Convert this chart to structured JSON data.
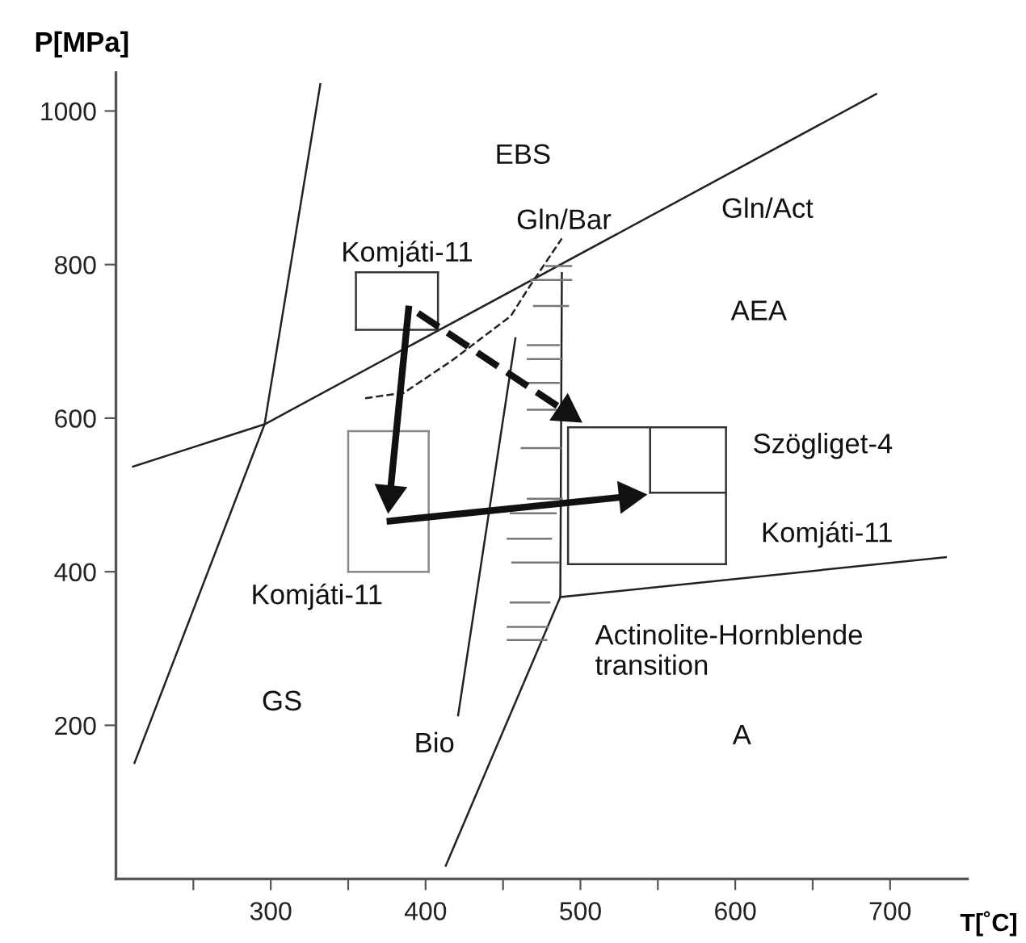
{
  "chart_data": {
    "type": "line",
    "xlabel": "T[˚C]",
    "ylabel": "P[MPa]",
    "xlim": [
      200,
      750
    ],
    "ylim": [
      0,
      1050
    ],
    "xticks": [
      {
        "value": 250,
        "label": null
      },
      300,
      {
        "value": 350,
        "label": null
      },
      400,
      {
        "value": 450,
        "label": null
      },
      500,
      {
        "value": 550,
        "label": null
      },
      600,
      {
        "value": 650,
        "label": null
      },
      700
    ],
    "yticks": [
      200,
      400,
      600,
      800,
      1000
    ],
    "grid": false,
    "legend": false,
    "marker": "none",
    "line_style": "solid",
    "series": [
      {
        "color": "#222222",
        "x": [
          212,
          296,
          332
        ],
        "values": [
          151,
          592,
          1035
        ]
      },
      {
        "color": "#222222",
        "x": [
          211,
          296,
          691
        ],
        "values": [
          537,
          592,
          1022
        ]
      },
      {
        "color": "#222222",
        "x": [
          421,
          458
        ],
        "values": [
          213,
          704
        ]
      },
      {
        "color": "#222222",
        "line_style": "dashed",
        "x": [
          361,
          386,
          417,
          455,
          467,
          488
        ],
        "values": [
          626,
          633,
          675,
          733,
          771,
          834
        ]
      },
      {
        "color": "#222222",
        "x": [
          488,
          487,
          413
        ],
        "values": [
          789,
          367,
          17
        ]
      },
      {
        "color": "#222222",
        "x": [
          487,
          736
        ],
        "values": [
          367,
          419
        ]
      },
      {
        "color": "#777777",
        "x": [
          478,
          494
        ],
        "values": [
          798,
          798
        ]
      },
      {
        "color": "#777777",
        "x": [
          468,
          494
        ],
        "values": [
          780,
          780
        ]
      },
      {
        "color": "#777777",
        "x": [
          470,
          492
        ],
        "values": [
          746,
          746
        ]
      },
      {
        "color": "#777777",
        "x": [
          466,
          486
        ],
        "values": [
          695,
          695
        ]
      },
      {
        "color": "#777777",
        "x": [
          466,
          488
        ],
        "values": [
          677,
          677
        ]
      },
      {
        "color": "#777777",
        "x": [
          466,
          486
        ],
        "values": [
          646,
          646
        ]
      },
      {
        "color": "#777777",
        "x": [
          466,
          484
        ],
        "values": [
          611,
          611
        ]
      },
      {
        "color": "#777777",
        "x": [
          462,
          487
        ],
        "values": [
          561,
          561
        ]
      },
      {
        "color": "#777777",
        "x": [
          466,
          488
        ],
        "values": [
          495,
          495
        ]
      },
      {
        "color": "#777777",
        "x": [
          455,
          484
        ],
        "values": [
          476,
          476
        ]
      },
      {
        "color": "#777777",
        "x": [
          453,
          481
        ],
        "values": [
          443,
          443
        ]
      },
      {
        "color": "#777777",
        "x": [
          456,
          486
        ],
        "values": [
          412,
          412
        ]
      },
      {
        "color": "#777777",
        "x": [
          455,
          480
        ],
        "values": [
          360,
          360
        ]
      },
      {
        "color": "#777777",
        "x": [
          453,
          479
        ],
        "values": [
          328,
          328
        ]
      },
      {
        "color": "#777777",
        "x": [
          453,
          478
        ],
        "values": [
          311,
          311
        ]
      },
      {
        "color": "#333333",
        "x": [
          355,
          408
        ],
        "values": [
          715,
          715
        ]
      },
      {
        "color": "#333333",
        "x": [
          355,
          408
        ],
        "values": [
          790,
          790
        ]
      },
      {
        "color": "#333333",
        "x": [
          355,
          355
        ],
        "values": [
          715,
          790
        ]
      },
      {
        "color": "#333333",
        "x": [
          408,
          408
        ],
        "values": [
          715,
          790
        ]
      },
      {
        "color": "#888888",
        "x": [
          350,
          402
        ],
        "values": [
          400,
          400
        ]
      },
      {
        "color": "#888888",
        "x": [
          350,
          402
        ],
        "values": [
          583,
          583
        ]
      },
      {
        "color": "#888888",
        "x": [
          350,
          350
        ],
        "values": [
          400,
          583
        ]
      },
      {
        "color": "#888888",
        "x": [
          402,
          402
        ],
        "values": [
          400,
          583
        ]
      },
      {
        "color": "#333333",
        "x": [
          492,
          594
        ],
        "values": [
          410,
          410
        ]
      },
      {
        "color": "#333333",
        "x": [
          492,
          594
        ],
        "values": [
          588,
          588
        ]
      },
      {
        "color": "#333333",
        "x": [
          492,
          492
        ],
        "values": [
          410,
          588
        ]
      },
      {
        "color": "#333333",
        "x": [
          594,
          594
        ],
        "values": [
          410,
          588
        ]
      },
      {
        "color": "#333333",
        "x": [
          545,
          594
        ],
        "values": [
          503,
          503
        ]
      },
      {
        "color": "#333333",
        "x": [
          545,
          545
        ],
        "values": [
          503,
          588
        ]
      },
      {
        "color": "#111111",
        "marker": "triangle",
        "x": [
          389,
          377
        ],
        "values": [
          742,
          500
        ]
      },
      {
        "color": "#111111",
        "marker": "triangle",
        "x": [
          377,
          531
        ],
        "values": [
          466,
          498
        ]
      },
      {
        "color": "#111111",
        "marker": "triangle",
        "line_style": "dashed",
        "x": [
          395,
          491
        ],
        "values": [
          737,
          608
        ]
      }
    ],
    "annotations": [
      "EBS",
      "Gln/Bar",
      "Gln/Act",
      "AEA",
      "Komjáti-11",
      "Szögliget-4",
      "Komjáti-11",
      "Komjáti-11",
      "Actinolite-Hornblende\ntransition",
      "GS",
      "Bio",
      "A"
    ]
  }
}
